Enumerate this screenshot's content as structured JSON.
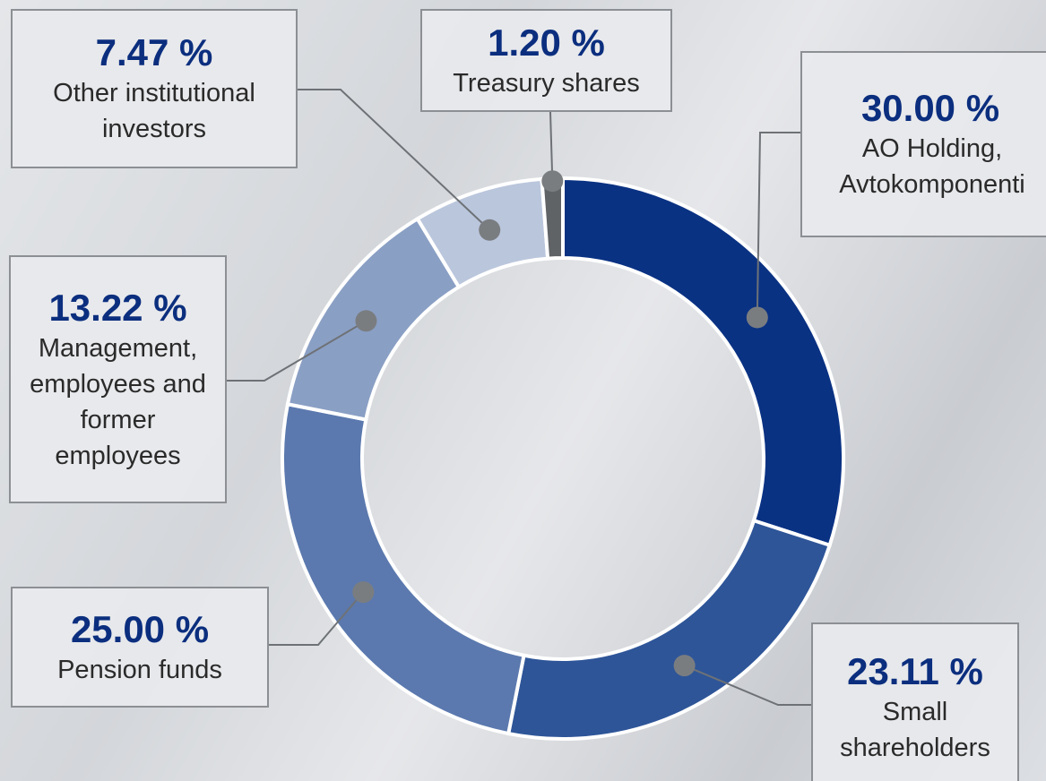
{
  "chart_data": {
    "type": "donut",
    "categories": [
      "AO Holding, Avtokomponenti",
      "Small shareholders",
      "Pension funds",
      "Management, employees and former employees",
      "Other institutional investors",
      "Treasury shares"
    ],
    "values": [
      30.0,
      23.11,
      25.0,
      13.22,
      7.47,
      1.2
    ],
    "value_labels": [
      "30.00 %",
      "23.11 %",
      "25.00 %",
      "13.22 %",
      "7.47 %",
      "1.20 %"
    ],
    "colors": [
      "#0a3283",
      "#2e5598",
      "#5b79ae",
      "#8a9fc4",
      "#bac6dc",
      "#5f6366"
    ]
  }
}
